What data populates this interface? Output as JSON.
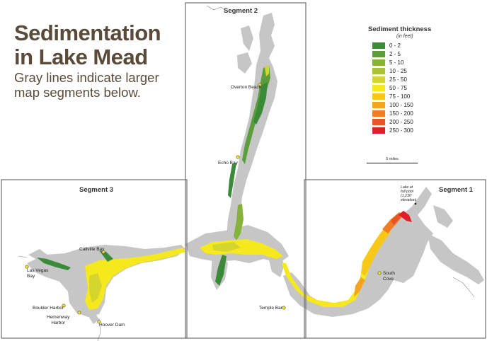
{
  "title_line1": "Sedimentation",
  "title_line2": "in Lake Mead",
  "subtitle_line1": "Gray lines indicate larger",
  "subtitle_line2": "map segments below.",
  "segments": {
    "segment1": "Segment 1",
    "segment2": "Segment 2",
    "segment3": "Segment 3"
  },
  "legend": {
    "title": "Sediment thickness",
    "unit": "(in feet)",
    "items": [
      {
        "label": "0 - 2",
        "color": "#3a8a3a"
      },
      {
        "label": "2 - 5",
        "color": "#5c9e3c"
      },
      {
        "label": "5 - 10",
        "color": "#86b23c"
      },
      {
        "label": "10 - 25",
        "color": "#a8c23a"
      },
      {
        "label": "25 - 50",
        "color": "#d4d62e"
      },
      {
        "label": "50 - 75",
        "color": "#f5e81c"
      },
      {
        "label": "75 - 100",
        "color": "#f8c818"
      },
      {
        "label": "100 - 150",
        "color": "#f5a41e"
      },
      {
        "label": "150 - 200",
        "color": "#ef7e22"
      },
      {
        "label": "200 - 250",
        "color": "#e85526"
      },
      {
        "label": "250 - 300",
        "color": "#e01e2a"
      }
    ]
  },
  "scale_label": "5 miles",
  "places": {
    "overton_beach": "Overton Beach",
    "echo_bay": "Echo Bay",
    "callville_bay": "Callville Bay",
    "las_vegas_bay_1": "Las Vegas",
    "las_vegas_bay_2": "Bay",
    "boulder_harbor": "Boulder Harbor",
    "hemenway_1": "Hemenway",
    "hemenway_2": "Harbor",
    "hoover_dam": "Hoover Dam",
    "temple_bar": "Temple Bar",
    "south_cove_1": "South",
    "south_cove_2": "Cove",
    "full_pool_1": "Lake at",
    "full_pool_2": "full pool",
    "full_pool_3": "(1,230'",
    "full_pool_4": "elevation)"
  }
}
